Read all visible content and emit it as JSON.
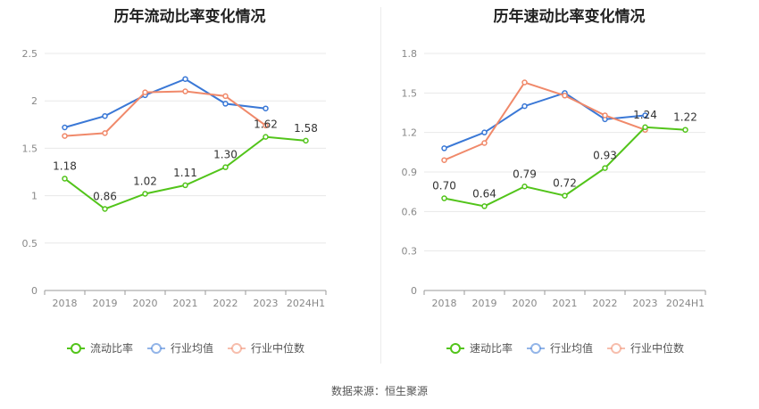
{
  "source_text": "数据来源：恒生聚源",
  "chart_data": [
    {
      "type": "line",
      "title": "历年流动比率变化情况",
      "categories": [
        "2018",
        "2019",
        "2020",
        "2021",
        "2022",
        "2023",
        "2024H1"
      ],
      "ylim": [
        0,
        2.5
      ],
      "yticks": [
        "0",
        "0.5",
        "1",
        "1.5",
        "2",
        "2.5"
      ],
      "grid": true,
      "legend_position": "bottom",
      "series": [
        {
          "name": "流动比率",
          "color": "#52c41a",
          "values": [
            1.18,
            0.86,
            1.02,
            1.11,
            1.3,
            1.62,
            1.58
          ],
          "labels": [
            "1.18",
            "0.86",
            "1.02",
            "1.11",
            "1.30",
            "1.62",
            "1.58"
          ]
        },
        {
          "name": "行业均值",
          "color": "#3a78d6",
          "values": [
            1.72,
            1.84,
            2.06,
            2.23,
            1.97,
            1.92,
            null
          ]
        },
        {
          "name": "行业中位数",
          "color": "#f0896a",
          "values": [
            1.63,
            1.66,
            2.09,
            2.1,
            2.05,
            1.74,
            null
          ]
        }
      ]
    },
    {
      "type": "line",
      "title": "历年速动比率变化情况",
      "categories": [
        "2018",
        "2019",
        "2020",
        "2021",
        "2022",
        "2023",
        "2024H1"
      ],
      "ylim": [
        0,
        1.8
      ],
      "yticks": [
        "0",
        "0.3",
        "0.6",
        "0.9",
        "1.2",
        "1.5",
        "1.8"
      ],
      "grid": true,
      "legend_position": "bottom",
      "series": [
        {
          "name": "速动比率",
          "color": "#52c41a",
          "values": [
            0.7,
            0.64,
            0.79,
            0.72,
            0.93,
            1.24,
            1.22
          ],
          "labels": [
            "0.70",
            "0.64",
            "0.79",
            "0.72",
            "0.93",
            "1.24",
            "1.22"
          ]
        },
        {
          "name": "行业均值",
          "color": "#3a78d6",
          "values": [
            1.08,
            1.2,
            1.4,
            1.5,
            1.3,
            1.33,
            null
          ]
        },
        {
          "name": "行业中位数",
          "color": "#f0896a",
          "values": [
            0.99,
            1.12,
            1.58,
            1.48,
            1.33,
            1.22,
            null
          ]
        }
      ]
    }
  ]
}
